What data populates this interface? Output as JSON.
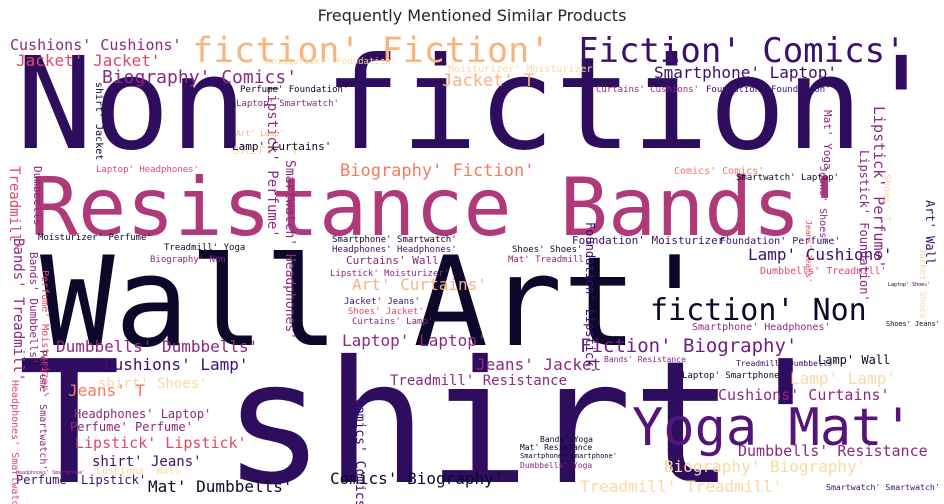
{
  "title": "Frequently Mentioned Similar Products",
  "palette": [
    "#0d0829",
    "#3b0f70",
    "#54157a",
    "#8c2981",
    "#b73779",
    "#de4968",
    "#f3795f",
    "#fbb37e",
    "#fcd8a6"
  ],
  "words": [
    {
      "text": "Non fiction'",
      "weight": 100,
      "color": "#2f0d5e"
    },
    {
      "text": "T shirt'",
      "weight": 99,
      "color": "#2f0d5e"
    },
    {
      "text": "Wall Art'",
      "weight": 78,
      "color": "#0d0829"
    },
    {
      "text": "Resistance Bands'",
      "weight": 58,
      "color": "#b0397a"
    },
    {
      "text": "Yoga Mat'",
      "weight": 46,
      "color": "#54157a"
    },
    {
      "text": "fiction' Fiction'",
      "weight": 32,
      "color": "#fbb37e"
    },
    {
      "text": "Fiction' Comics'",
      "weight": 31,
      "color": "#3b0f70"
    },
    {
      "text": "fiction' Non",
      "weight": 29,
      "color": "#0d0829"
    },
    {
      "text": "Fiction' Biography'",
      "weight": 19,
      "color": "#6e1f81"
    },
    {
      "text": "Biography' Comics'",
      "weight": 17,
      "color": "#8c2981"
    },
    {
      "text": "Smartphone' Laptop'",
      "weight": 15,
      "color": "#3b0f70"
    },
    {
      "text": "Cushions' Cushions'",
      "weight": 14,
      "color": "#8c2981"
    },
    {
      "text": "Jacket' Jacket'",
      "weight": 15,
      "color": "#de4968"
    },
    {
      "text": "Jacket' T",
      "weight": 16,
      "color": "#fbb37e"
    },
    {
      "text": "Biography' Fiction'",
      "weight": 16,
      "color": "#f3795f"
    },
    {
      "text": "Dumbbells' Dumbbells'",
      "weight": 15,
      "color": "#8c2981"
    },
    {
      "text": "Laptop' Laptop'",
      "weight": 15,
      "color": "#8c2981"
    },
    {
      "text": "Cushions' Lamp'",
      "weight": 15,
      "color": "#3b0f70"
    },
    {
      "text": "Lamp' Cushions'",
      "weight": 15,
      "color": "#3b0f70"
    },
    {
      "text": "Art' Curtains'",
      "weight": 15,
      "color": "#fbb37e"
    },
    {
      "text": "Lamp' Lamp'",
      "weight": 15,
      "color": "#fcd8a6"
    },
    {
      "text": "Cushions' Curtains'",
      "weight": 14,
      "color": "#8c2981"
    },
    {
      "text": "Jeans' Jacket",
      "weight": 15,
      "color": "#8c2981"
    },
    {
      "text": "Jeans' T",
      "weight": 15,
      "color": "#f3795f"
    },
    {
      "text": "Treadmill' Resistance",
      "weight": 13,
      "color": "#8c2981"
    },
    {
      "text": "Lipstick' Lipstick'",
      "weight": 14,
      "color": "#de4968"
    },
    {
      "text": "Dumbbells' Resistance",
      "weight": 14,
      "color": "#8c2981"
    },
    {
      "text": "Biography' Biography'",
      "weight": 16,
      "color": "#fcd8a6"
    },
    {
      "text": "Treadmill' Treadmill'",
      "weight": 16,
      "color": "#fcd8a6"
    },
    {
      "text": "Comics' Biography'",
      "weight": 15,
      "color": "#0d0829"
    },
    {
      "text": "Mat' Dumbbells'",
      "weight": 15,
      "color": "#0d0829"
    },
    {
      "text": "shirt' Jeans'",
      "weight": 13,
      "color": "#3b0f70"
    },
    {
      "text": "Perfume' Lipstick'",
      "weight": 11,
      "color": "#3b0f70"
    },
    {
      "text": "Perfume' Perfume'",
      "weight": 11,
      "color": "#8c2981"
    },
    {
      "text": "Headphones' Laptop'",
      "weight": 11,
      "color": "#8c2981"
    },
    {
      "text": "shirt' Shoes'",
      "weight": 13,
      "color": "#fcd8a6"
    },
    {
      "text": "shirt' T",
      "weight": 13,
      "color": "#fcd8a6"
    },
    {
      "text": "Lipstick' Perfume'",
      "weight": 13,
      "color": "#8c2981"
    },
    {
      "text": "Lamp' Wall",
      "weight": 11,
      "color": "#0d0829"
    },
    {
      "text": "Lamp' Curtains'",
      "weight": 10,
      "color": "#0d0829"
    },
    {
      "text": "Curtains' Wall",
      "weight": 10,
      "color": "#8c2981"
    },
    {
      "text": "Dumbbells' Treadmill'",
      "weight": 9,
      "color": "#de4968"
    },
    {
      "text": "Foundation' Moisturizer'",
      "weight": 10,
      "color": "#3b0f70"
    },
    {
      "text": "Foundation' Perfume'",
      "weight": 9,
      "color": "#3b0f70"
    },
    {
      "text": "Smartphone' Headphones'",
      "weight": 9,
      "color": "#8c2981"
    },
    {
      "text": "Moisturizer' Moisturizer'",
      "weight": 9,
      "color": "#fcd8a6"
    },
    {
      "text": "Moisturizer' Foundation'",
      "weight": 8,
      "color": "#fcd8a6"
    },
    {
      "text": "Curtains' Cushions'",
      "weight": 8,
      "color": "#8c2981"
    },
    {
      "text": "Foundation' Foundation'",
      "weight": 8,
      "color": "#3b0f70"
    },
    {
      "text": "Comics' Comics'",
      "weight": 9,
      "color": "#f3795f"
    },
    {
      "text": "Perfume' Foundation'",
      "weight": 8,
      "color": "#0d0829"
    },
    {
      "text": "Laptop' Smartwatch'",
      "weight": 8,
      "color": "#8c2981"
    },
    {
      "text": "Laptop' Headphones'",
      "weight": 8,
      "color": "#de4968"
    },
    {
      "text": "Curtains' Lamp'",
      "weight": 8,
      "color": "#8c2981"
    },
    {
      "text": "Smartwatch' Laptop'",
      "weight": 8,
      "color": "#0d0829"
    },
    {
      "text": "Art' Lamp'",
      "weight": 7,
      "color": "#fbb37e"
    },
    {
      "text": "Moisturizer' Perfume'",
      "weight": 8,
      "color": "#0d0829"
    },
    {
      "text": "Smartphone' Smartwatch'",
      "weight": 8,
      "color": "#0d0829"
    },
    {
      "text": "Treadmill' Yoga",
      "weight": 8,
      "color": "#0d0829"
    },
    {
      "text": "Headphones' Headphones'",
      "weight": 8,
      "color": "#3b0f70"
    },
    {
      "text": "Biography' Non",
      "weight": 8,
      "color": "#8c2981"
    },
    {
      "text": "Shoes' Shoes'",
      "weight": 8,
      "color": "#0d0829"
    },
    {
      "text": "Mat' Treadmill'",
      "weight": 8,
      "color": "#8c2981"
    },
    {
      "text": "Lipstick' Moisturizer'",
      "weight": 8,
      "color": "#8c2981"
    },
    {
      "text": "Jacket' Jeans'",
      "weight": 8,
      "color": "#3b0f70"
    },
    {
      "text": "Shoes' Jacket'",
      "weight": 8,
      "color": "#de4968"
    },
    {
      "text": "Shoes' Jeans'",
      "weight": 7,
      "color": "#0d0829"
    },
    {
      "text": "Laptop' Smartphone'",
      "weight": 7,
      "color": "#0d0829"
    },
    {
      "text": "Bands' Resistance",
      "weight": 7,
      "color": "#8c2981"
    },
    {
      "text": "Treadmill' Dumbbells'",
      "weight": 7,
      "color": "#3b0f70"
    },
    {
      "text": "Bands' Yoga",
      "weight": 7,
      "color": "#0d0829"
    },
    {
      "text": "Mat' Resistance",
      "weight": 7,
      "color": "#0d0829"
    },
    {
      "text": "Smartphone' Smartphone'",
      "weight": 6,
      "color": "#0d0829"
    },
    {
      "text": "Dumbbells' Yoga",
      "weight": 6,
      "color": "#8c2981"
    },
    {
      "text": "Headphones' Smartphone'",
      "weight": 6,
      "color": "#8c2981"
    },
    {
      "text": "Cushions' Wall",
      "weight": 8,
      "color": "#fcd8a6"
    },
    {
      "text": "Smartwatch' Smartwatch'",
      "weight": 8,
      "color": "#3b0f70"
    },
    {
      "text": "Laptop' Shoes'",
      "weight": 8,
      "color": "#0d0829"
    },
    {
      "text": "shirt' Jacket",
      "weight": 8,
      "color": "#0d0829"
    },
    {
      "text": "Bands' Treadmill'",
      "weight": 11,
      "color": "#8c2981"
    },
    {
      "text": "Bands' Dumbbells'",
      "weight": 9,
      "color": "#8c2981"
    },
    {
      "text": "Treadmill'",
      "weight": 11,
      "color": "#de4968"
    },
    {
      "text": "Dumbbells'",
      "weight": 10,
      "color": "#8c2981"
    },
    {
      "text": "Perfume' Moisturizer'",
      "weight": 8,
      "color": "#de4968"
    },
    {
      "text": "Smartwatch' Headphones'",
      "weight": 11,
      "color": "#8c2981"
    },
    {
      "text": "Perfume' Smartwatch'",
      "weight": 8,
      "color": "#8c2981"
    },
    {
      "text": "Headphones' Smartwatch'",
      "weight": 8,
      "color": "#de4968"
    },
    {
      "text": "Comics' Comics'",
      "weight": 11,
      "color": "#3b0f70"
    },
    {
      "text": "Foundation' Lipstick'",
      "weight": 10,
      "color": "#3b0f70"
    },
    {
      "text": "Lipstick' Perfume'",
      "weight": 14,
      "color": "#8c2981"
    },
    {
      "text": "Lipstick' Foundation'",
      "weight": 11,
      "color": "#8c2981"
    },
    {
      "text": "Art' Wall",
      "weight": 11,
      "color": "#3b0f70"
    },
    {
      "text": "Mat' Yoga",
      "weight": 10,
      "color": "#8c2981"
    },
    {
      "text": "Jeans' Shoes'",
      "weight": 9,
      "color": "#8c2981"
    },
    {
      "text": "Shoes' T",
      "weight": 9,
      "color": "#fcd8a6"
    },
    {
      "text": "Jacket' Shoes'",
      "weight": 9,
      "color": "#fcd8a6"
    },
    {
      "text": "Jeans' Jeans'",
      "weight": 8,
      "color": "#de4968"
    }
  ]
}
